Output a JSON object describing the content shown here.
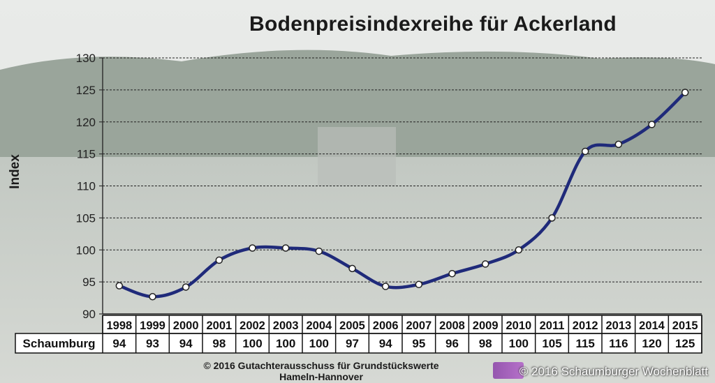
{
  "title": "Bodenpreisindexreihe für Ackerland",
  "footer": {
    "line1": "© 2016 Gutachterausschuss für Grundstückswerte",
    "line2": "Hameln-Hannover"
  },
  "copyright": "© 2016 Schaumburger Wochenblatt",
  "colors": {
    "line": "#1f2a7a",
    "grid": "#222222",
    "table_bg": "#ffffff"
  },
  "chart_data": {
    "type": "line",
    "title": "Bodenpreisindexreihe für Ackerland",
    "xlabel": "",
    "ylabel": "Index",
    "ylim": [
      90,
      130
    ],
    "yticks": [
      90,
      95,
      100,
      105,
      110,
      115,
      120,
      125,
      130
    ],
    "grid": true,
    "categories": [
      "1998",
      "1999",
      "2000",
      "2001",
      "2002",
      "2003",
      "2004",
      "2005",
      "2006",
      "2007",
      "2008",
      "2009",
      "2010",
      "2011",
      "2012",
      "2013",
      "2014",
      "2015"
    ],
    "series": [
      {
        "values": [
          94.4,
          92.7,
          94.2,
          98.4,
          100.3,
          100.3,
          99.8,
          97.1,
          94.3,
          94.6,
          96.3,
          97.8,
          100.0,
          105.0,
          115.4,
          116.5,
          119.6,
          124.6
        ]
      }
    ],
    "table": {
      "row_label": "Schaumburg",
      "values": [
        "94",
        "93",
        "94",
        "98",
        "100",
        "100",
        "100",
        "97",
        "94",
        "95",
        "96",
        "98",
        "100",
        "105",
        "115",
        "116",
        "120",
        "125"
      ]
    }
  }
}
